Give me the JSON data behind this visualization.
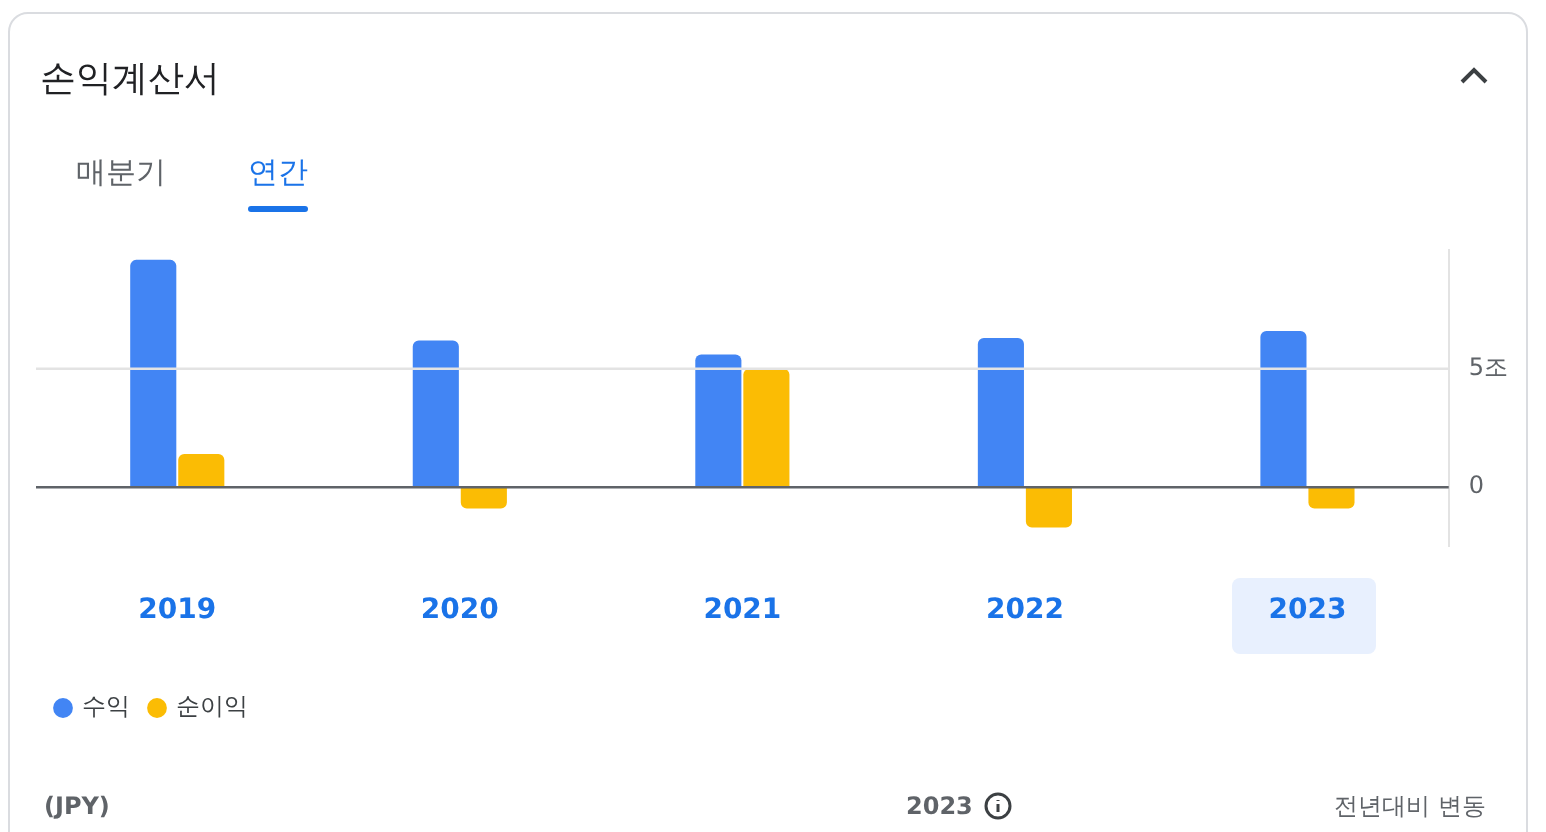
{
  "chart_data": {
    "type": "bar",
    "title": "손익계산서",
    "categories": [
      "2019",
      "2020",
      "2021",
      "2022",
      "2023"
    ],
    "series": [
      {
        "name": "수익",
        "color": "#4285f4",
        "values": [
          9.6,
          6.2,
          5.6,
          6.3,
          6.6
        ]
      },
      {
        "name": "순이익",
        "color": "#fbbc04",
        "values": [
          1.4,
          -0.9,
          5.0,
          -1.7,
          -0.9
        ]
      }
    ],
    "ylim": [
      -2.5,
      10
    ],
    "yticks": [
      0,
      {
        "value": 5,
        "label": "5조"
      }
    ],
    "ref_lines": [
      {
        "axis": "y",
        "value": 0,
        "color": "#5f6368"
      },
      {
        "axis": "y",
        "value": 5,
        "color": "#e3e3e3"
      }
    ],
    "legend": "bottom left",
    "annotations": [
      "매분기",
      "연간",
      "(JPY)",
      "2023",
      "전년대비 변동"
    ]
  }
}
